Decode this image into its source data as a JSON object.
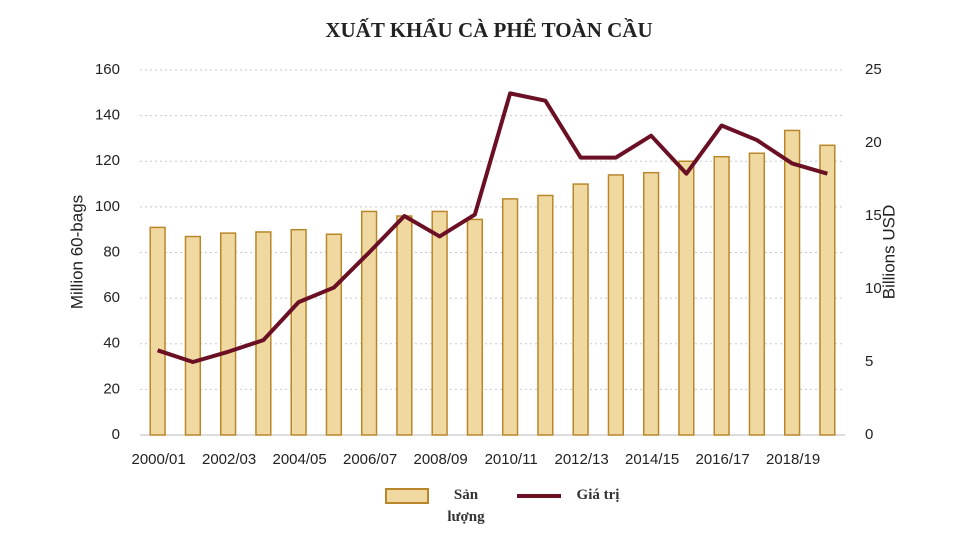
{
  "chart_data": {
    "type": "bar-line",
    "title": "XUẤT KHẨU CÀ PHÊ TOÀN CẦU",
    "y_label": "Million 60-bags",
    "y2_label": "Billions USD",
    "categories": [
      "2000/01",
      null,
      "2002/03",
      null,
      "2004/05",
      null,
      "2006/07",
      null,
      "2008/09",
      null,
      "2010/11",
      null,
      "2012/13",
      null,
      "2014/15",
      null,
      "2016/17",
      null,
      "2018/19",
      null
    ],
    "series": [
      {
        "name": "Sản lượng",
        "type": "bar",
        "color": "#f0d9a0",
        "edge_color": "#b8862b",
        "values": [
          91,
          87,
          88.5,
          89,
          90,
          88,
          98,
          96,
          98,
          94.5,
          103.5,
          105,
          110,
          114,
          115,
          120,
          122,
          123.5,
          133.5,
          127
        ]
      },
      {
        "name": "Giá trị",
        "type": "line",
        "axis": "y2",
        "color": "#6b0f24",
        "values": [
          5.8,
          5.0,
          5.7,
          6.5,
          9.1,
          10.1,
          12.5,
          15.0,
          13.6,
          15.1,
          23.4,
          22.9,
          19.0,
          19.0,
          20.5,
          17.9,
          21.2,
          20.2,
          18.6,
          17.9
        ]
      }
    ],
    "ylim": [
      0,
      160
    ],
    "yticks": [
      0,
      20,
      40,
      60,
      80,
      100,
      120,
      140,
      160
    ],
    "y2lim": [
      0,
      25
    ],
    "y2ticks": [
      0,
      5,
      10,
      15,
      20,
      25
    ],
    "grid": true
  }
}
